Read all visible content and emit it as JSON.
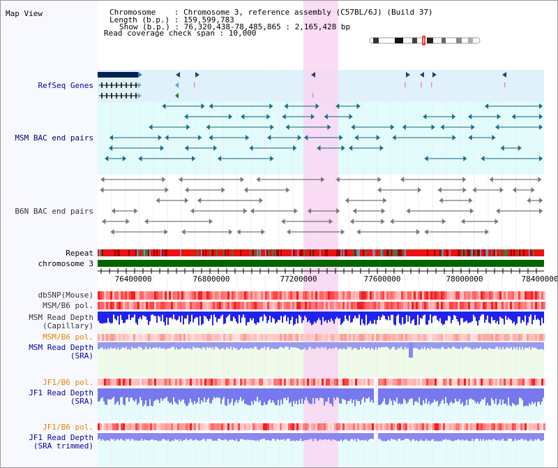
{
  "title": "Map View",
  "info": {
    "chromosome": "Chromosome    : Chromosome 3, reference assembly (C57BL/6J) (Build 37)",
    "length": "Length (b.p.) : 159,599,783",
    "show": "Show (b.p.) : 76,320,438-78,485,865 : 2,165,428 bp",
    "coverage": "Read coverage check span : 10,000"
  },
  "tracks": {
    "refseq": "RefSeq Genes",
    "msm_bac": "MSM BAC end pairs",
    "b6n_bac": "B6N BAC end pairs",
    "repeat": "Repeat",
    "chromosome": "chromosome 3",
    "dbsnp": "dbSNP(Mouse)",
    "msm_b6_pol_1": "MSM/B6 pol.",
    "msm_depth_cap_1": "MSM Read Depth",
    "msm_depth_cap_2": "(Capillary)",
    "msm_b6_pol_2": "MSM/B6 pol.",
    "msm_depth_sra_1": "MSM Read Depth",
    "msm_depth_sra_2": "(SRA)",
    "jf1_b6_pol_1": "JF1/B6 pol.",
    "jf1_depth_sra_1": "JF1 Read Depth",
    "jf1_depth_sra_2": "(SRA)",
    "jf1_b6_pol_2": "JF1/B6 pol.",
    "jf1_depth_trim_1": "JF1 Read Depth",
    "jf1_depth_trim_2": "(SRA trimmed)"
  },
  "axis": {
    "ticks": [
      "76400000",
      "76800000",
      "77200000",
      "77600000",
      "78000000",
      "78400000"
    ]
  },
  "colors": {
    "blue_label": "#000099",
    "orange_label": "#e08800",
    "highlight": "#f9d6f3",
    "gene_bg": "#dff1fb",
    "bac_bg": "#e2fbfb",
    "chromosome_bar": "#006600"
  }
}
